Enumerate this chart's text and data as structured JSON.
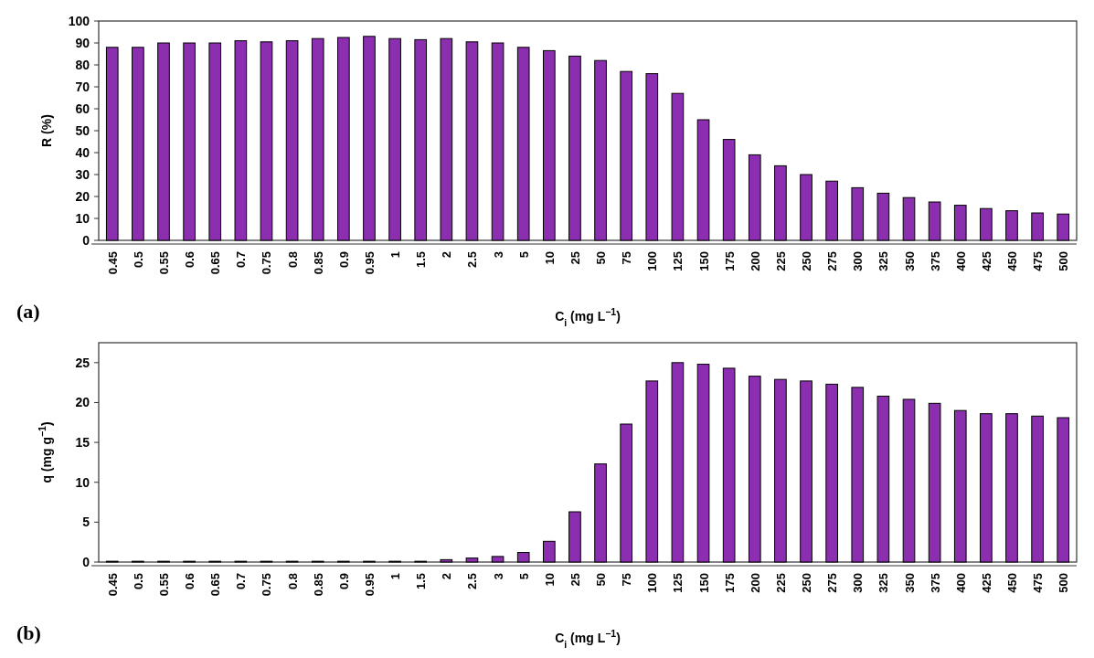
{
  "chart_data": [
    {
      "type": "bar",
      "xlabel": "C$_{i}$ (mg L$^{−1}$)",
      "ylabel": "R (%)",
      "annotations": [
        "(a)"
      ],
      "categories": [
        "0.45",
        "0.5",
        "0.55",
        "0.6",
        "0.65",
        "0.7",
        "0.75",
        "0.8",
        "0.85",
        "0.9",
        "0.95",
        "1",
        "1.5",
        "2",
        "2.5",
        "3",
        "5",
        "10",
        "25",
        "50",
        "75",
        "100",
        "125",
        "150",
        "175",
        "200",
        "225",
        "250",
        "275",
        "300",
        "325",
        "350",
        "375",
        "400",
        "425",
        "450",
        "475",
        "500"
      ],
      "series": [
        {
          "color": "#8b2fb0",
          "values": [
            88,
            88,
            90,
            90,
            90,
            91,
            90.5,
            91,
            92,
            92.5,
            93,
            92,
            91.5,
            92,
            90.5,
            90,
            88,
            86.5,
            84,
            82,
            77,
            76,
            67,
            55,
            46,
            39,
            34,
            30,
            27,
            24,
            21.5,
            19.5,
            17.5,
            16,
            14.5,
            13.5,
            12.5,
            12
          ]
        }
      ],
      "ylim": [
        0,
        100
      ],
      "yticks": [
        0,
        10,
        20,
        30,
        40,
        50,
        60,
        70,
        80,
        90,
        100
      ]
    },
    {
      "type": "bar",
      "xlabel": "C$_{i}$ (mg L$^{−1}$)",
      "ylabel": "q (mg g$^{−1}$)",
      "annotations": [
        "(b)"
      ],
      "categories": [
        "0.45",
        "0.5",
        "0.55",
        "0.6",
        "0.65",
        "0.7",
        "0.75",
        "0.8",
        "0.85",
        "0.9",
        "0.95",
        "1",
        "1.5",
        "2",
        "2.5",
        "3",
        "5",
        "10",
        "25",
        "50",
        "75",
        "100",
        "125",
        "150",
        "175",
        "200",
        "225",
        "250",
        "275",
        "300",
        "325",
        "350",
        "375",
        "400",
        "425",
        "450",
        "475",
        "500"
      ],
      "series": [
        {
          "color": "#8b2fb0",
          "values": [
            0.1,
            0.1,
            0.1,
            0.1,
            0.1,
            0.1,
            0.1,
            0.1,
            0.1,
            0.1,
            0.1,
            0.1,
            0.1,
            0.3,
            0.5,
            0.7,
            1.2,
            2.6,
            6.3,
            12.3,
            17.3,
            22.7,
            25,
            24.8,
            24.3,
            23.3,
            22.9,
            22.7,
            22.3,
            21.9,
            20.8,
            20.4,
            19.9,
            19,
            18.6,
            18.6,
            18.3,
            18.1
          ]
        }
      ],
      "ylim": [
        0,
        27.5
      ],
      "yticks": [
        0,
        5,
        10,
        15,
        20,
        25
      ]
    }
  ]
}
